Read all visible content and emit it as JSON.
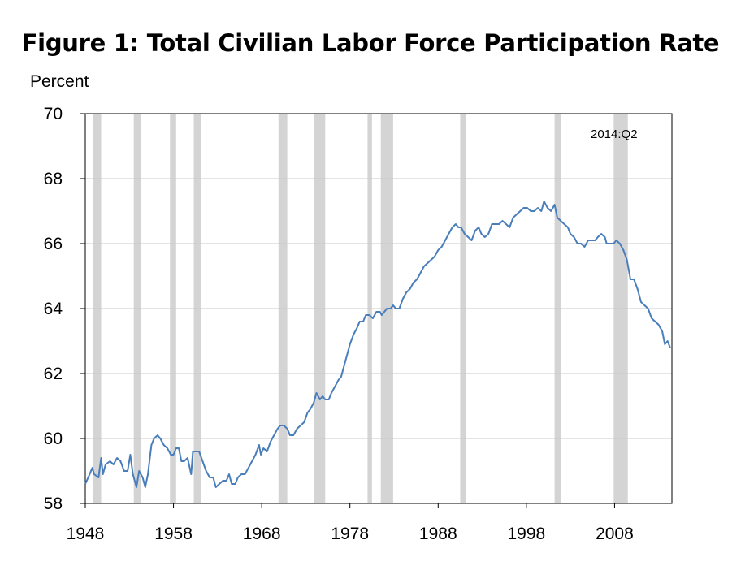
{
  "title": "Figure 1: Total Civilian Labor Force Participation Rate",
  "chart_data": {
    "type": "line",
    "title": "Figure 1: Total Civilian Labor Force Participation Rate",
    "ylabel": "Percent",
    "xlabel": "",
    "annotation": "2014:Q2",
    "xlim": [
      1948,
      2014.5
    ],
    "ylim": [
      58,
      70
    ],
    "yticks": [
      "58",
      "60",
      "62",
      "64",
      "66",
      "68",
      "70"
    ],
    "xticks": [
      "1948",
      "1958",
      "1968",
      "1978",
      "1988",
      "1998",
      "2008"
    ],
    "grid": "horizontal",
    "line_color": "#4a7ebb",
    "recession_color": "#d4d4d4",
    "recessions": [
      [
        1948.9,
        1949.8
      ],
      [
        1953.5,
        1954.3
      ],
      [
        1957.6,
        1958.3
      ],
      [
        1960.3,
        1961.1
      ],
      [
        1969.9,
        1970.9
      ],
      [
        1973.9,
        1975.2
      ],
      [
        1980.0,
        1980.5
      ],
      [
        1981.5,
        1982.9
      ],
      [
        1990.5,
        1991.2
      ],
      [
        2001.2,
        2001.9
      ],
      [
        2007.9,
        2009.5
      ]
    ],
    "series": [
      {
        "points": [
          [
            1948.0,
            58.6
          ],
          [
            1948.5,
            58.9
          ],
          [
            1948.8,
            59.1
          ],
          [
            1949.0,
            58.9
          ],
          [
            1949.5,
            58.8
          ],
          [
            1949.8,
            59.4
          ],
          [
            1950.0,
            58.9
          ],
          [
            1950.3,
            59.2
          ],
          [
            1950.8,
            59.3
          ],
          [
            1951.2,
            59.2
          ],
          [
            1951.6,
            59.4
          ],
          [
            1952.0,
            59.3
          ],
          [
            1952.4,
            59.0
          ],
          [
            1952.8,
            59.0
          ],
          [
            1953.1,
            59.5
          ],
          [
            1953.4,
            58.9
          ],
          [
            1953.8,
            58.5
          ],
          [
            1954.1,
            59.0
          ],
          [
            1954.5,
            58.8
          ],
          [
            1954.8,
            58.5
          ],
          [
            1955.1,
            58.9
          ],
          [
            1955.5,
            59.8
          ],
          [
            1955.8,
            60.0
          ],
          [
            1956.2,
            60.1
          ],
          [
            1956.5,
            60.0
          ],
          [
            1956.9,
            59.8
          ],
          [
            1957.3,
            59.7
          ],
          [
            1957.7,
            59.5
          ],
          [
            1958.0,
            59.5
          ],
          [
            1958.3,
            59.7
          ],
          [
            1958.6,
            59.7
          ],
          [
            1958.9,
            59.3
          ],
          [
            1959.2,
            59.3
          ],
          [
            1959.6,
            59.4
          ],
          [
            1960.0,
            58.9
          ],
          [
            1960.2,
            59.6
          ],
          [
            1960.6,
            59.6
          ],
          [
            1960.9,
            59.6
          ],
          [
            1961.3,
            59.3
          ],
          [
            1961.7,
            59.0
          ],
          [
            1962.1,
            58.8
          ],
          [
            1962.5,
            58.8
          ],
          [
            1962.8,
            58.5
          ],
          [
            1963.2,
            58.6
          ],
          [
            1963.6,
            58.7
          ],
          [
            1964.0,
            58.7
          ],
          [
            1964.3,
            58.9
          ],
          [
            1964.6,
            58.6
          ],
          [
            1965.0,
            58.6
          ],
          [
            1965.3,
            58.8
          ],
          [
            1965.7,
            58.9
          ],
          [
            1966.1,
            58.9
          ],
          [
            1966.5,
            59.1
          ],
          [
            1966.9,
            59.3
          ],
          [
            1967.3,
            59.5
          ],
          [
            1967.7,
            59.8
          ],
          [
            1967.9,
            59.5
          ],
          [
            1968.2,
            59.7
          ],
          [
            1968.6,
            59.6
          ],
          [
            1969.0,
            59.9
          ],
          [
            1969.4,
            60.1
          ],
          [
            1969.8,
            60.3
          ],
          [
            1970.1,
            60.4
          ],
          [
            1970.5,
            60.4
          ],
          [
            1970.9,
            60.3
          ],
          [
            1971.2,
            60.1
          ],
          [
            1971.6,
            60.1
          ],
          [
            1972.0,
            60.3
          ],
          [
            1972.4,
            60.4
          ],
          [
            1972.8,
            60.5
          ],
          [
            1973.2,
            60.8
          ],
          [
            1973.5,
            60.9
          ],
          [
            1973.9,
            61.1
          ],
          [
            1974.2,
            61.4
          ],
          [
            1974.6,
            61.2
          ],
          [
            1974.9,
            61.3
          ],
          [
            1975.2,
            61.2
          ],
          [
            1975.6,
            61.2
          ],
          [
            1975.9,
            61.4
          ],
          [
            1976.3,
            61.6
          ],
          [
            1976.7,
            61.8
          ],
          [
            1977.0,
            61.9
          ],
          [
            1977.4,
            62.3
          ],
          [
            1977.7,
            62.6
          ],
          [
            1978.0,
            62.9
          ],
          [
            1978.4,
            63.2
          ],
          [
            1978.8,
            63.4
          ],
          [
            1979.1,
            63.6
          ],
          [
            1979.5,
            63.6
          ],
          [
            1979.8,
            63.8
          ],
          [
            1980.2,
            63.8
          ],
          [
            1980.6,
            63.7
          ],
          [
            1981.0,
            63.9
          ],
          [
            1981.4,
            63.9
          ],
          [
            1981.6,
            63.8
          ],
          [
            1981.9,
            63.9
          ],
          [
            1982.2,
            64.0
          ],
          [
            1982.6,
            64.0
          ],
          [
            1982.9,
            64.1
          ],
          [
            1983.2,
            64.0
          ],
          [
            1983.6,
            64.0
          ],
          [
            1984.0,
            64.3
          ],
          [
            1984.4,
            64.5
          ],
          [
            1984.8,
            64.6
          ],
          [
            1985.2,
            64.8
          ],
          [
            1985.6,
            64.9
          ],
          [
            1986.0,
            65.1
          ],
          [
            1986.4,
            65.3
          ],
          [
            1986.8,
            65.4
          ],
          [
            1987.2,
            65.5
          ],
          [
            1987.6,
            65.6
          ],
          [
            1988.0,
            65.8
          ],
          [
            1988.4,
            65.9
          ],
          [
            1988.8,
            66.1
          ],
          [
            1989.2,
            66.3
          ],
          [
            1989.6,
            66.5
          ],
          [
            1990.0,
            66.6
          ],
          [
            1990.3,
            66.5
          ],
          [
            1990.6,
            66.5
          ],
          [
            1991.0,
            66.3
          ],
          [
            1991.4,
            66.2
          ],
          [
            1991.8,
            66.1
          ],
          [
            1992.2,
            66.4
          ],
          [
            1992.6,
            66.5
          ],
          [
            1992.9,
            66.3
          ],
          [
            1993.3,
            66.2
          ],
          [
            1993.7,
            66.3
          ],
          [
            1994.1,
            66.6
          ],
          [
            1994.5,
            66.6
          ],
          [
            1994.9,
            66.6
          ],
          [
            1995.3,
            66.7
          ],
          [
            1995.7,
            66.6
          ],
          [
            1996.1,
            66.5
          ],
          [
            1996.5,
            66.8
          ],
          [
            1996.9,
            66.9
          ],
          [
            1997.3,
            67.0
          ],
          [
            1997.7,
            67.1
          ],
          [
            1998.1,
            67.1
          ],
          [
            1998.5,
            67.0
          ],
          [
            1998.9,
            67.0
          ],
          [
            1999.3,
            67.1
          ],
          [
            1999.7,
            67.0
          ],
          [
            2000.0,
            67.3
          ],
          [
            2000.4,
            67.1
          ],
          [
            2000.8,
            67.0
          ],
          [
            2001.2,
            67.2
          ],
          [
            2001.5,
            66.8
          ],
          [
            2001.9,
            66.7
          ],
          [
            2002.3,
            66.6
          ],
          [
            2002.7,
            66.5
          ],
          [
            2003.0,
            66.3
          ],
          [
            2003.4,
            66.2
          ],
          [
            2003.8,
            66.0
          ],
          [
            2004.2,
            66.0
          ],
          [
            2004.6,
            65.9
          ],
          [
            2005.0,
            66.1
          ],
          [
            2005.4,
            66.1
          ],
          [
            2005.8,
            66.1
          ],
          [
            2006.1,
            66.2
          ],
          [
            2006.5,
            66.3
          ],
          [
            2006.9,
            66.2
          ],
          [
            2007.1,
            66.0
          ],
          [
            2007.5,
            66.0
          ],
          [
            2007.9,
            66.0
          ],
          [
            2008.2,
            66.1
          ],
          [
            2008.6,
            66.0
          ],
          [
            2009.0,
            65.8
          ],
          [
            2009.4,
            65.5
          ],
          [
            2009.8,
            64.9
          ],
          [
            2010.2,
            64.9
          ],
          [
            2010.6,
            64.6
          ],
          [
            2011.0,
            64.2
          ],
          [
            2011.4,
            64.1
          ],
          [
            2011.8,
            64.0
          ],
          [
            2012.2,
            63.7
          ],
          [
            2012.6,
            63.6
          ],
          [
            2013.0,
            63.5
          ],
          [
            2013.4,
            63.3
          ],
          [
            2013.7,
            62.9
          ],
          [
            2014.0,
            63.0
          ],
          [
            2014.3,
            62.8
          ]
        ]
      }
    ]
  }
}
